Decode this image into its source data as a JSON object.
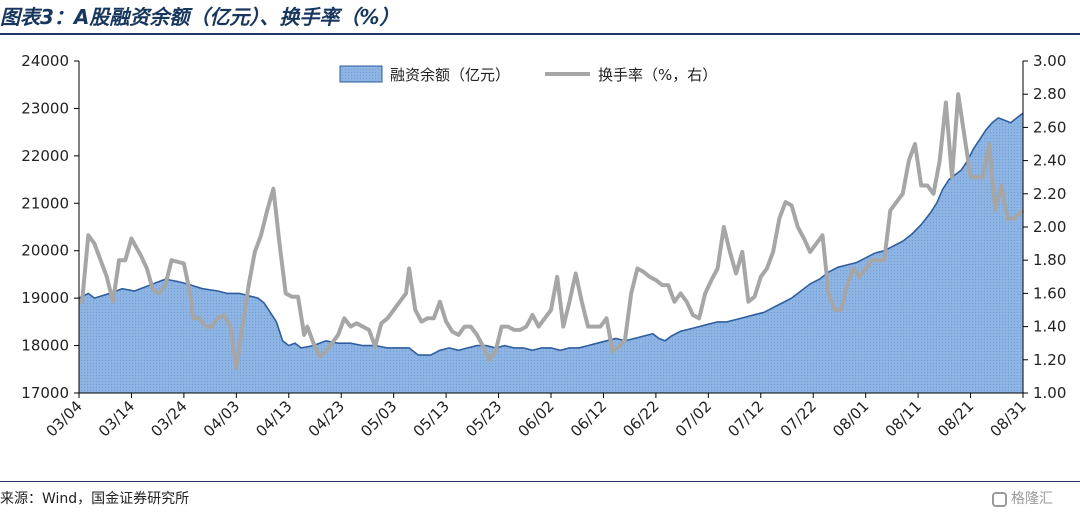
{
  "header": {
    "title": "图表3：A股融资余额（亿元）、换手率（%）"
  },
  "footer": {
    "source": "来源：Wind，国金证券研究所",
    "watermark": "格隆汇"
  },
  "colors": {
    "area_fill": "#8db4e2",
    "area_line": "#2f5f9e",
    "turnover_line": "#a6a6a6",
    "axis": "#000000"
  },
  "chart_data": {
    "type": "area",
    "title": "",
    "legend": [
      "融资余额（亿元）",
      "换手率（%，右）"
    ],
    "legend_position": "top-center",
    "grid": false,
    "x_ticks": [
      "03/04",
      "03/14",
      "03/24",
      "04/03",
      "04/13",
      "04/23",
      "05/03",
      "05/13",
      "05/23",
      "06/02",
      "06/12",
      "06/22",
      "07/02",
      "07/12",
      "07/22",
      "08/01",
      "08/11",
      "08/21",
      "08/31"
    ],
    "y_left": {
      "range": [
        17000,
        24000
      ],
      "ticks": [
        "17000",
        "18000",
        "19000",
        "20000",
        "21000",
        "22000",
        "23000",
        "24000"
      ]
    },
    "y_right": {
      "range": [
        1.0,
        3.0
      ],
      "ticks": [
        "1.00",
        "1.20",
        "1.40",
        "1.60",
        "1.80",
        "2.00",
        "2.20",
        "2.40",
        "2.60",
        "2.80",
        "3.00"
      ]
    },
    "series": [
      {
        "name": "融资余额（亿元）",
        "type": "area",
        "axis": "left",
        "points": [
          [
            0,
            19000
          ],
          [
            3,
            19100
          ],
          [
            5,
            19000
          ],
          [
            10,
            19100
          ],
          [
            14,
            19200
          ],
          [
            18,
            19150
          ],
          [
            22,
            19250
          ],
          [
            26,
            19350
          ],
          [
            28,
            19400
          ],
          [
            32,
            19350
          ],
          [
            35,
            19300
          ],
          [
            40,
            19200
          ],
          [
            45,
            19150
          ],
          [
            48,
            19100
          ],
          [
            52,
            19100
          ],
          [
            55,
            19050
          ],
          [
            58,
            19000
          ],
          [
            60,
            18900
          ],
          [
            62,
            18700
          ],
          [
            64,
            18500
          ],
          [
            66,
            18100
          ],
          [
            68,
            18000
          ],
          [
            70,
            18050
          ],
          [
            72,
            17950
          ],
          [
            76,
            18000
          ],
          [
            80,
            18100
          ],
          [
            84,
            18050
          ],
          [
            88,
            18050
          ],
          [
            92,
            18000
          ],
          [
            96,
            18000
          ],
          [
            100,
            17950
          ],
          [
            103,
            17950
          ],
          [
            107,
            17950
          ],
          [
            110,
            17800
          ],
          [
            114,
            17800
          ],
          [
            117,
            17900
          ],
          [
            120,
            17950
          ],
          [
            123,
            17900
          ],
          [
            126,
            17950
          ],
          [
            129,
            18000
          ],
          [
            132,
            18000
          ],
          [
            135,
            17950
          ],
          [
            138,
            18000
          ],
          [
            141,
            17950
          ],
          [
            144,
            17950
          ],
          [
            147,
            17900
          ],
          [
            150,
            17950
          ],
          [
            153,
            17950
          ],
          [
            156,
            17900
          ],
          [
            159,
            17950
          ],
          [
            162,
            17950
          ],
          [
            165,
            18000
          ],
          [
            168,
            18050
          ],
          [
            171,
            18100
          ],
          [
            174,
            18150
          ],
          [
            177,
            18100
          ],
          [
            180,
            18150
          ],
          [
            183,
            18200
          ],
          [
            186,
            18250
          ],
          [
            188,
            18150
          ],
          [
            190,
            18100
          ],
          [
            192,
            18200
          ],
          [
            195,
            18300
          ],
          [
            198,
            18350
          ],
          [
            201,
            18400
          ],
          [
            204,
            18450
          ],
          [
            207,
            18500
          ],
          [
            210,
            18500
          ],
          [
            213,
            18550
          ],
          [
            216,
            18600
          ],
          [
            219,
            18650
          ],
          [
            222,
            18700
          ],
          [
            225,
            18800
          ],
          [
            228,
            18900
          ],
          [
            231,
            19000
          ],
          [
            234,
            19150
          ],
          [
            237,
            19300
          ],
          [
            240,
            19400
          ],
          [
            243,
            19550
          ],
          [
            246,
            19650
          ],
          [
            249,
            19700
          ],
          [
            252,
            19750
          ],
          [
            255,
            19850
          ],
          [
            258,
            19950
          ],
          [
            261,
            20000
          ],
          [
            264,
            20100
          ],
          [
            267,
            20200
          ],
          [
            270,
            20350
          ],
          [
            273,
            20550
          ],
          [
            276,
            20800
          ],
          [
            278,
            21000
          ],
          [
            280,
            21300
          ],
          [
            282,
            21500
          ],
          [
            284,
            21600
          ],
          [
            286,
            21700
          ],
          [
            288,
            21900
          ],
          [
            290,
            22150
          ],
          [
            292,
            22350
          ],
          [
            294,
            22550
          ],
          [
            296,
            22700
          ],
          [
            298,
            22800
          ],
          [
            300,
            22750
          ],
          [
            302,
            22700
          ],
          [
            304,
            22800
          ],
          [
            306,
            22900
          ]
        ]
      },
      {
        "name": "换手率（%，右）",
        "type": "line",
        "axis": "right",
        "points": [
          [
            0,
            1.55
          ],
          [
            1,
            1.55
          ],
          [
            3,
            1.95
          ],
          [
            5,
            1.9
          ],
          [
            7,
            1.8
          ],
          [
            9,
            1.7
          ],
          [
            11,
            1.55
          ],
          [
            13,
            1.8
          ],
          [
            15,
            1.8
          ],
          [
            17,
            1.93
          ],
          [
            20,
            1.83
          ],
          [
            22,
            1.75
          ],
          [
            24,
            1.62
          ],
          [
            26,
            1.6
          ],
          [
            28,
            1.65
          ],
          [
            30,
            1.8
          ],
          [
            34,
            1.78
          ],
          [
            36,
            1.6
          ],
          [
            37,
            1.45
          ],
          [
            39,
            1.45
          ],
          [
            41,
            1.4
          ],
          [
            43,
            1.4
          ],
          [
            45,
            1.45
          ],
          [
            47,
            1.47
          ],
          [
            49,
            1.4
          ],
          [
            51,
            1.15
          ],
          [
            53,
            1.4
          ],
          [
            55,
            1.65
          ],
          [
            57,
            1.85
          ],
          [
            59,
            1.95
          ],
          [
            61,
            2.1
          ],
          [
            63,
            2.23
          ],
          [
            65,
            1.9
          ],
          [
            67,
            1.6
          ],
          [
            69,
            1.58
          ],
          [
            71,
            1.58
          ],
          [
            73,
            1.35
          ],
          [
            74,
            1.4
          ],
          [
            76,
            1.3
          ],
          [
            78,
            1.22
          ],
          [
            80,
            1.25
          ],
          [
            82,
            1.3
          ],
          [
            84,
            1.35
          ],
          [
            86,
            1.45
          ],
          [
            88,
            1.4
          ],
          [
            90,
            1.42
          ],
          [
            92,
            1.4
          ],
          [
            94,
            1.38
          ],
          [
            96,
            1.28
          ],
          [
            98,
            1.42
          ],
          [
            100,
            1.45
          ],
          [
            102,
            1.5
          ],
          [
            104,
            1.55
          ],
          [
            106,
            1.6
          ],
          [
            107,
            1.75
          ],
          [
            109,
            1.5
          ],
          [
            111,
            1.43
          ],
          [
            113,
            1.45
          ],
          [
            115,
            1.45
          ],
          [
            117,
            1.55
          ],
          [
            119,
            1.43
          ],
          [
            121,
            1.37
          ],
          [
            123,
            1.35
          ],
          [
            125,
            1.4
          ],
          [
            127,
            1.4
          ],
          [
            129,
            1.35
          ],
          [
            131,
            1.28
          ],
          [
            133,
            1.2
          ],
          [
            135,
            1.25
          ],
          [
            137,
            1.4
          ],
          [
            139,
            1.4
          ],
          [
            141,
            1.38
          ],
          [
            143,
            1.38
          ],
          [
            145,
            1.4
          ],
          [
            147,
            1.47
          ],
          [
            149,
            1.4
          ],
          [
            151,
            1.45
          ],
          [
            153,
            1.5
          ],
          [
            155,
            1.7
          ],
          [
            157,
            1.4
          ],
          [
            159,
            1.55
          ],
          [
            161,
            1.72
          ],
          [
            163,
            1.55
          ],
          [
            165,
            1.4
          ],
          [
            167,
            1.4
          ],
          [
            169,
            1.4
          ],
          [
            171,
            1.45
          ],
          [
            173,
            1.25
          ],
          [
            175,
            1.28
          ],
          [
            177,
            1.32
          ],
          [
            179,
            1.6
          ],
          [
            181,
            1.75
          ],
          [
            183,
            1.73
          ],
          [
            185,
            1.7
          ],
          [
            187,
            1.68
          ],
          [
            189,
            1.65
          ],
          [
            191,
            1.65
          ],
          [
            193,
            1.55
          ],
          [
            195,
            1.6
          ],
          [
            197,
            1.55
          ],
          [
            199,
            1.47
          ],
          [
            201,
            1.45
          ],
          [
            203,
            1.6
          ],
          [
            205,
            1.68
          ],
          [
            207,
            1.75
          ],
          [
            209,
            2.0
          ],
          [
            211,
            1.85
          ],
          [
            213,
            1.72
          ],
          [
            215,
            1.85
          ],
          [
            217,
            1.55
          ],
          [
            219,
            1.58
          ],
          [
            221,
            1.7
          ],
          [
            223,
            1.75
          ],
          [
            225,
            1.85
          ],
          [
            227,
            2.05
          ],
          [
            229,
            2.15
          ],
          [
            231,
            2.13
          ],
          [
            233,
            2.0
          ],
          [
            235,
            1.93
          ],
          [
            237,
            1.85
          ],
          [
            239,
            1.9
          ],
          [
            241,
            1.95
          ],
          [
            243,
            1.6
          ],
          [
            245,
            1.5
          ],
          [
            247,
            1.5
          ],
          [
            249,
            1.65
          ],
          [
            251,
            1.75
          ],
          [
            253,
            1.7
          ],
          [
            255,
            1.75
          ],
          [
            257,
            1.8
          ],
          [
            259,
            1.8
          ],
          [
            261,
            1.8
          ],
          [
            263,
            2.1
          ],
          [
            265,
            2.15
          ],
          [
            267,
            2.2
          ],
          [
            269,
            2.4
          ],
          [
            271,
            2.5
          ],
          [
            273,
            2.25
          ],
          [
            275,
            2.25
          ],
          [
            277,
            2.2
          ],
          [
            279,
            2.4
          ],
          [
            281,
            2.75
          ],
          [
            283,
            2.3
          ],
          [
            285,
            2.8
          ],
          [
            287,
            2.55
          ],
          [
            289,
            2.3
          ],
          [
            291,
            2.3
          ],
          [
            293,
            2.3
          ],
          [
            295,
            2.5
          ],
          [
            297,
            2.1
          ],
          [
            299,
            2.25
          ],
          [
            301,
            2.05
          ],
          [
            303,
            2.05
          ],
          [
            306,
            2.1
          ]
        ]
      }
    ]
  }
}
